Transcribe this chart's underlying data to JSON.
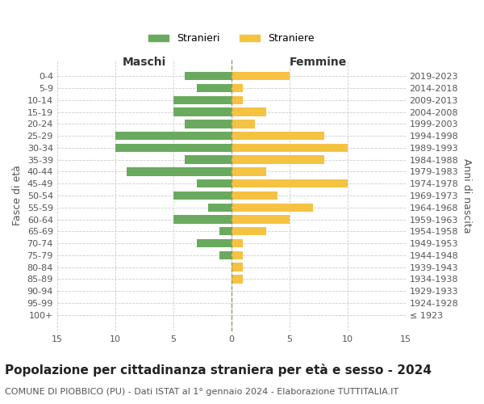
{
  "age_groups": [
    "100+",
    "95-99",
    "90-94",
    "85-89",
    "80-84",
    "75-79",
    "70-74",
    "65-69",
    "60-64",
    "55-59",
    "50-54",
    "45-49",
    "40-44",
    "35-39",
    "30-34",
    "25-29",
    "20-24",
    "15-19",
    "10-14",
    "5-9",
    "0-4"
  ],
  "birth_years": [
    "≤ 1923",
    "1924-1928",
    "1929-1933",
    "1934-1938",
    "1939-1943",
    "1944-1948",
    "1949-1953",
    "1954-1958",
    "1959-1963",
    "1964-1968",
    "1969-1973",
    "1974-1978",
    "1979-1983",
    "1984-1988",
    "1989-1993",
    "1994-1998",
    "1999-2003",
    "2004-2008",
    "2009-2013",
    "2014-2018",
    "2019-2023"
  ],
  "maschi": [
    0,
    0,
    0,
    0,
    0,
    1,
    3,
    1,
    5,
    2,
    5,
    3,
    9,
    4,
    10,
    10,
    4,
    5,
    5,
    3,
    4
  ],
  "femmine": [
    0,
    0,
    0,
    1,
    1,
    1,
    1,
    3,
    5,
    7,
    4,
    10,
    3,
    8,
    10,
    8,
    2,
    3,
    1,
    1,
    5
  ],
  "male_color": "#6aaa5e",
  "female_color": "#f5c242",
  "title": "Popolazione per cittadinanza straniera per età e sesso - 2024",
  "subtitle": "COMUNE DI PIOBBICO (PU) - Dati ISTAT al 1° gennaio 2024 - Elaborazione TUTTITALIA.IT",
  "xlabel_left": "Maschi",
  "xlabel_right": "Femmine",
  "ylabel_left": "Fasce di età",
  "ylabel_right": "Anni di nascita",
  "legend_male": "Stranieri",
  "legend_female": "Straniere",
  "xlim": 15,
  "bar_height": 0.7,
  "background_color": "#ffffff",
  "grid_color": "#cccccc",
  "title_fontsize": 11,
  "subtitle_fontsize": 8,
  "label_fontsize": 9,
  "tick_fontsize": 8,
  "legend_fontsize": 9
}
